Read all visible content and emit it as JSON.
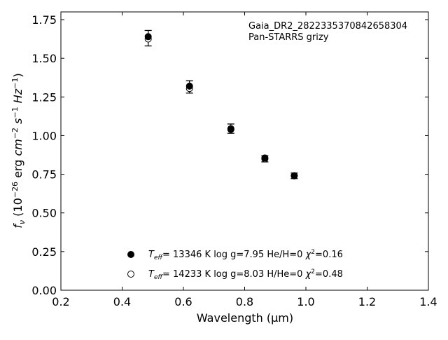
{
  "chart_data": {
    "type": "scatter",
    "xlabel": "Wavelength (μm)",
    "ylabel": "f_ν (10^-26 erg cm^-2 s^-1 Hz^-1)",
    "xlim": [
      0.2,
      1.4
    ],
    "ylim": [
      0.0,
      1.8
    ],
    "xticks": [
      0.2,
      0.4,
      0.6,
      0.8,
      1.0,
      1.2,
      1.4
    ],
    "yticks": [
      0.0,
      0.25,
      0.5,
      0.75,
      1.0,
      1.25,
      1.5,
      1.75
    ],
    "xtick_labels": [
      "0.2",
      "0.4",
      "0.6",
      "0.8",
      "1.0",
      "1.2",
      "1.4"
    ],
    "ytick_labels": [
      "0.00",
      "0.25",
      "0.50",
      "0.75",
      "1.00",
      "1.25",
      "1.50",
      "1.75"
    ],
    "grid": false,
    "annotation_lines": [
      "Gaia_DR2_2822335370842658304",
      "Pan-STARRS grizy"
    ],
    "observed": {
      "x": [
        0.485,
        0.62,
        0.755,
        0.866,
        0.962
      ],
      "y": [
        1.63,
        1.315,
        1.045,
        0.85,
        0.74
      ],
      "yerr": [
        0.05,
        0.04,
        0.03,
        0.02,
        0.018
      ]
    },
    "series": [
      {
        "marker": "filled-circle",
        "legend": {
          "teff_value": "= 13346 K",
          "rest": "log g=7.95  He/H=0",
          "chi": "=0.16"
        },
        "x": [
          0.485,
          0.62,
          0.755,
          0.866,
          0.962
        ],
        "y": [
          1.64,
          1.32,
          1.04,
          0.855,
          0.74
        ]
      },
      {
        "marker": "open-circle",
        "legend": {
          "teff_value": "= 14233 K",
          "rest": "log g=8.03  H/He=0",
          "chi": "=0.48"
        },
        "x": [
          0.485,
          0.62,
          0.755,
          0.866,
          0.962
        ],
        "y": [
          1.625,
          1.305,
          1.045,
          0.85,
          0.74
        ]
      }
    ],
    "colors": {
      "marker": "#000000",
      "axes": "#000000",
      "background": "#ffffff"
    }
  }
}
